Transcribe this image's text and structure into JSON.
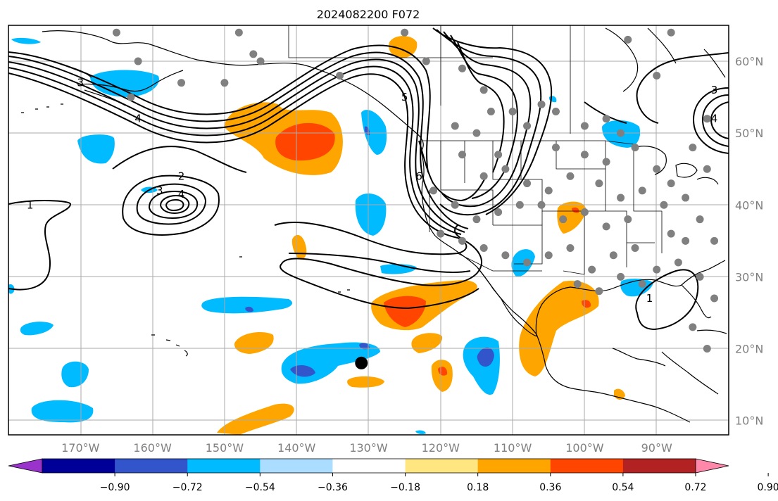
{
  "title": "2024082200 F072",
  "map": {
    "lon_range": [
      -180,
      -80
    ],
    "lat_range": [
      8,
      65
    ],
    "lon_ticks": [
      {
        "lon": -170,
        "label": "170°W"
      },
      {
        "lon": -160,
        "label": "160°W"
      },
      {
        "lon": -150,
        "label": "150°W"
      },
      {
        "lon": -140,
        "label": "140°W"
      },
      {
        "lon": -130,
        "label": "130°W"
      },
      {
        "lon": -120,
        "label": "120°W"
      },
      {
        "lon": -110,
        "label": "110°W"
      },
      {
        "lon": -100,
        "label": "100°W"
      },
      {
        "lon": -90,
        "label": "90°W"
      }
    ],
    "lat_ticks": [
      {
        "lat": 60,
        "label": "60°N"
      },
      {
        "lat": 50,
        "label": "50°N"
      },
      {
        "lat": 40,
        "label": "40°N"
      },
      {
        "lat": 30,
        "label": "30°N"
      },
      {
        "lat": 20,
        "label": "20°N"
      },
      {
        "lat": 10,
        "label": "10°N"
      }
    ],
    "storm_marker": {
      "lon": -131,
      "lat": 18
    }
  },
  "contour_labels": [
    {
      "text": "1",
      "lon": -177,
      "lat": 40
    },
    {
      "text": "3",
      "lon": -170,
      "lat": 57
    },
    {
      "text": "4",
      "lon": -162,
      "lat": 52
    },
    {
      "text": "2",
      "lon": -156,
      "lat": 44
    },
    {
      "text": "3",
      "lon": -159,
      "lat": 42
    },
    {
      "text": "4",
      "lon": -156,
      "lat": 41.5
    },
    {
      "text": "5",
      "lon": -125,
      "lat": 55
    },
    {
      "text": "6",
      "lon": -123,
      "lat": 44
    },
    {
      "text": "1",
      "lon": -91,
      "lat": 27
    },
    {
      "text": "3",
      "lon": -82,
      "lat": 56
    },
    {
      "text": "4",
      "lon": -82,
      "lat": 52
    }
  ],
  "colorbar": {
    "ticks": [
      "−0.90",
      "−0.72",
      "−0.54",
      "−0.36",
      "−0.18",
      "0.18",
      "0.36",
      "0.54",
      "0.72",
      "0.90"
    ],
    "colors": [
      "#9933cc",
      "#000099",
      "#3355cc",
      "#00bbff",
      "#aaddff",
      "#ffffff",
      "#ffe680",
      "#ffa500",
      "#ff4500",
      "#b22222",
      "#ff88aa"
    ]
  },
  "stations": [
    [
      -165,
      64
    ],
    [
      -162,
      60
    ],
    [
      -148,
      64
    ],
    [
      -145,
      60
    ],
    [
      -156,
      57
    ],
    [
      -150,
      57
    ],
    [
      -163,
      55
    ],
    [
      -146,
      61
    ],
    [
      -134,
      58
    ],
    [
      -125,
      64
    ],
    [
      -122,
      60
    ],
    [
      -117,
      59
    ],
    [
      -114,
      56
    ],
    [
      -110,
      53
    ],
    [
      -106,
      54
    ],
    [
      -104,
      53
    ],
    [
      -100,
      51
    ],
    [
      -97,
      52
    ],
    [
      -95,
      50
    ],
    [
      -118,
      51
    ],
    [
      -115,
      50
    ],
    [
      -113,
      53
    ],
    [
      -112,
      47
    ],
    [
      -108,
      51
    ],
    [
      -104,
      48
    ],
    [
      -100,
      47
    ],
    [
      -97,
      46
    ],
    [
      -93,
      48
    ],
    [
      -90,
      45
    ],
    [
      -88,
      43
    ],
    [
      -86,
      41
    ],
    [
      -117,
      47
    ],
    [
      -114,
      44
    ],
    [
      -111,
      45
    ],
    [
      -108,
      43
    ],
    [
      -105,
      42
    ],
    [
      -102,
      44
    ],
    [
      -98,
      43
    ],
    [
      -95,
      41
    ],
    [
      -92,
      42
    ],
    [
      -89,
      40
    ],
    [
      -121,
      42
    ],
    [
      -118,
      40
    ],
    [
      -115,
      38
    ],
    [
      -112,
      39
    ],
    [
      -109,
      40
    ],
    [
      -106,
      40
    ],
    [
      -103,
      38
    ],
    [
      -100,
      39
    ],
    [
      -97,
      37
    ],
    [
      -94,
      38
    ],
    [
      -120,
      36
    ],
    [
      -117,
      35
    ],
    [
      -114,
      34
    ],
    [
      -111,
      33
    ],
    [
      -108,
      32
    ],
    [
      -105,
      33
    ],
    [
      -102,
      34
    ],
    [
      -99,
      31
    ],
    [
      -96,
      33
    ],
    [
      -93,
      34
    ],
    [
      -90,
      31
    ],
    [
      -87,
      32
    ],
    [
      -84,
      30
    ],
    [
      -82,
      27
    ],
    [
      -82,
      35
    ],
    [
      -84,
      38
    ],
    [
      -86,
      35
    ],
    [
      -88,
      36
    ],
    [
      -92,
      29
    ],
    [
      -95,
      30
    ],
    [
      -98,
      28
    ],
    [
      -101,
      29
    ],
    [
      -85,
      23
    ],
    [
      -83,
      20
    ],
    [
      -83,
      45
    ],
    [
      -85,
      48
    ],
    [
      -83,
      52
    ],
    [
      -90,
      58
    ],
    [
      -94,
      63
    ],
    [
      -88,
      64
    ]
  ]
}
